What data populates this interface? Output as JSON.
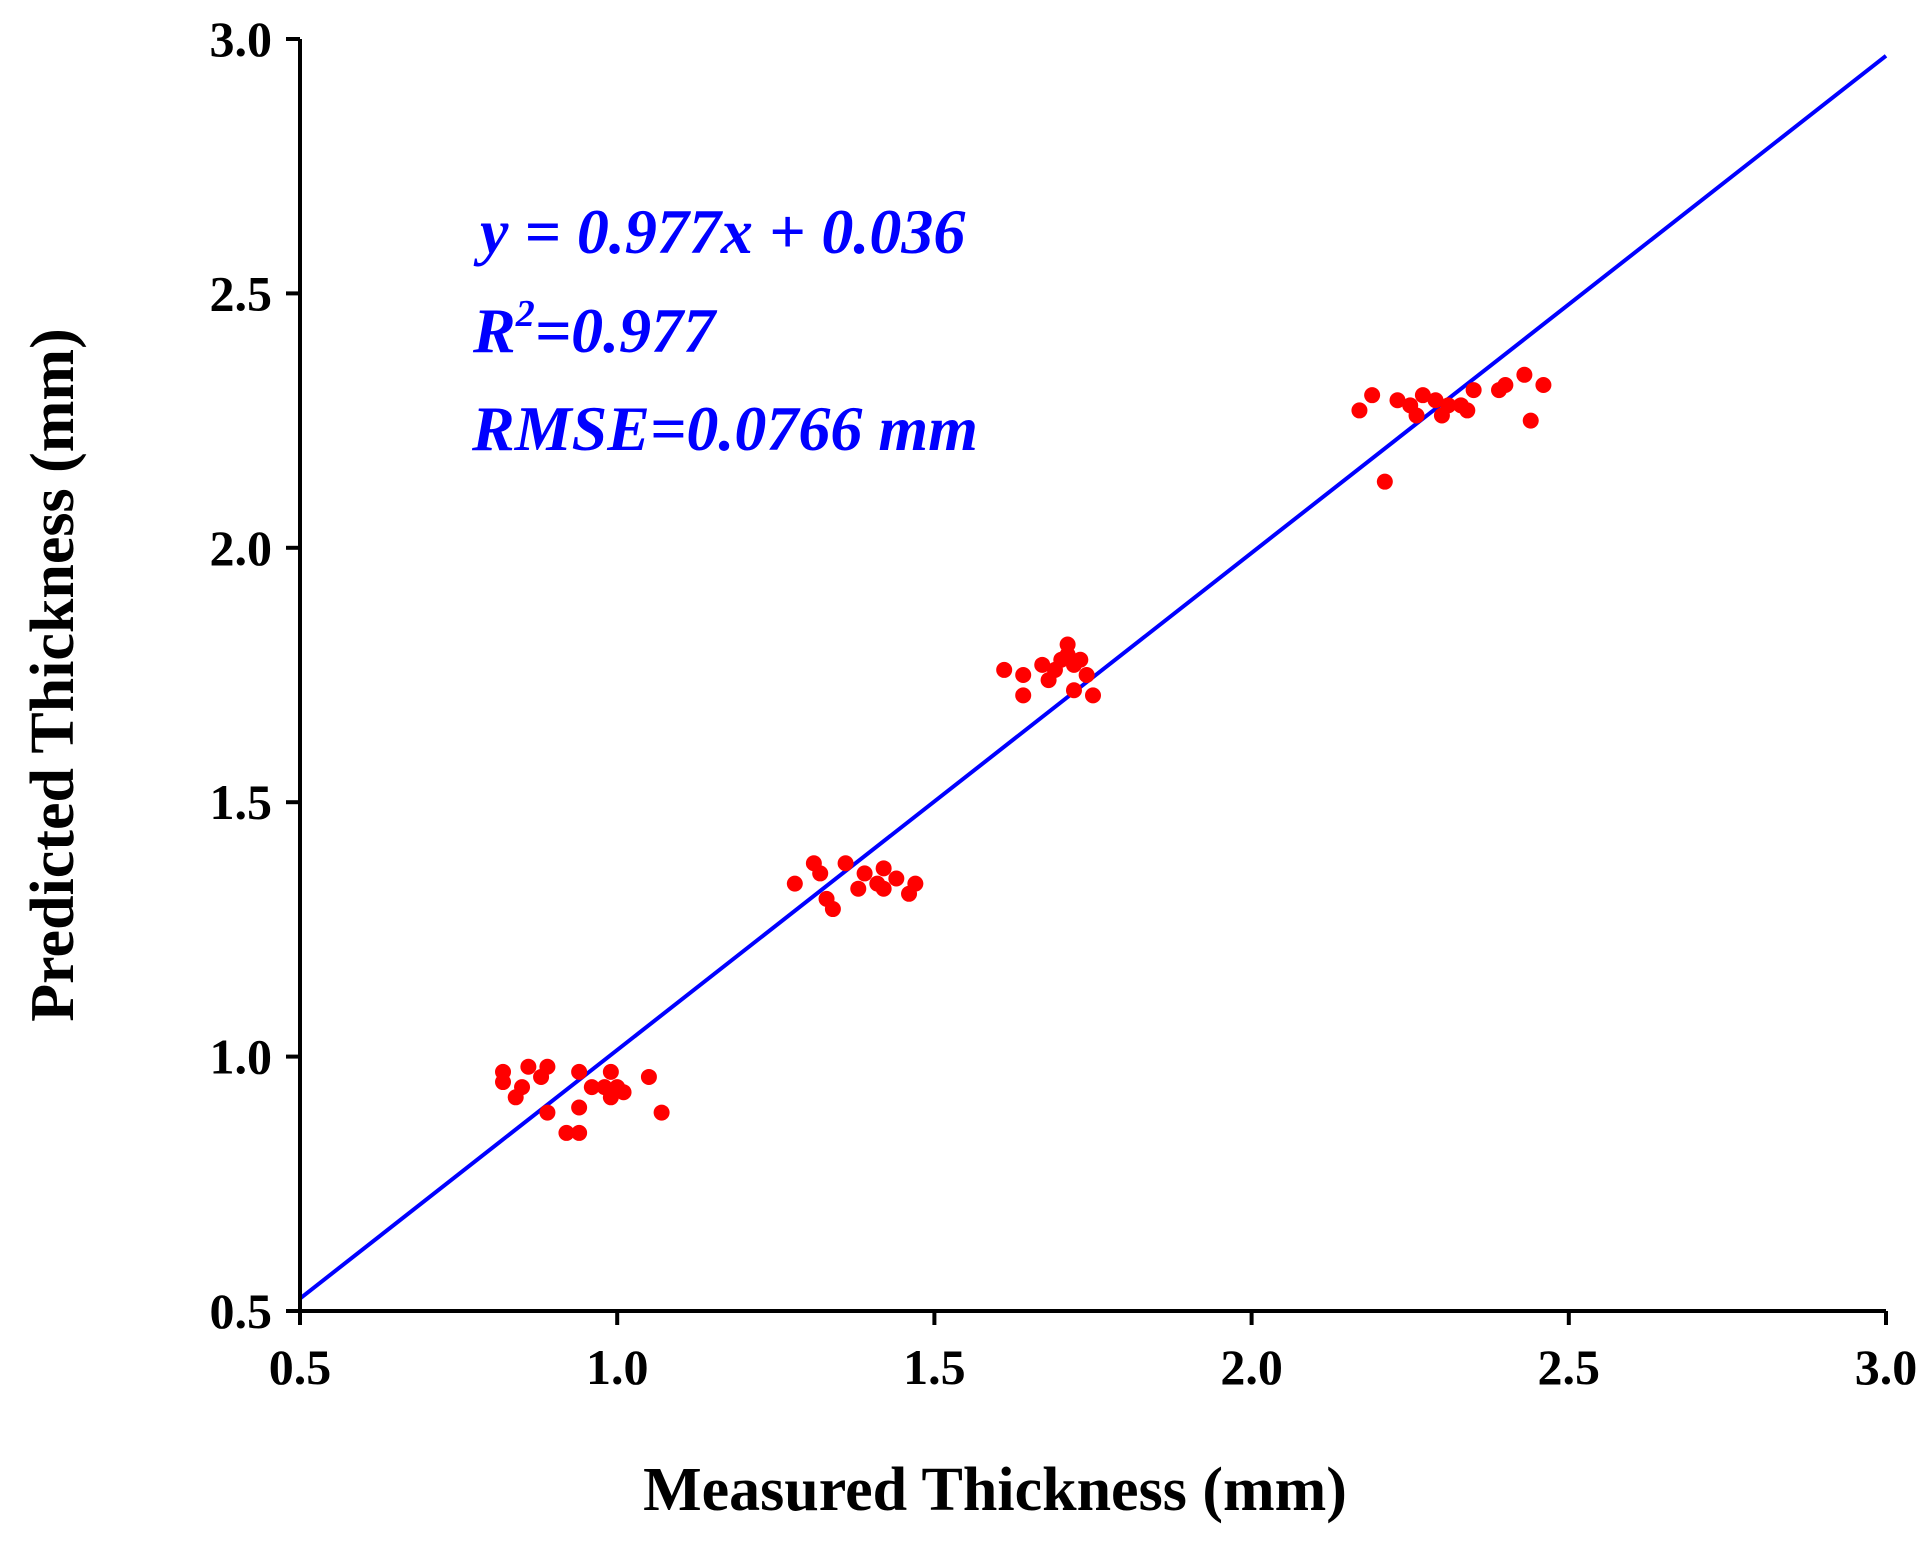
{
  "chart_data": {
    "type": "scatter",
    "xlabel": "Measured Thickness (mm)",
    "ylabel": "Predicted Thickness (mm)",
    "xlim": [
      0.5,
      3.0
    ],
    "ylim": [
      0.5,
      3.0
    ],
    "xticks": [
      "0.5",
      "1.0",
      "1.5",
      "2.0",
      "2.5",
      "3.0"
    ],
    "yticks": [
      "0.5",
      "1.0",
      "1.5",
      "2.0",
      "2.5",
      "3.0"
    ],
    "grid": false,
    "series": [
      {
        "name": "samples",
        "color": "#ff0000",
        "points": [
          [
            0.82,
            0.97
          ],
          [
            0.82,
            0.95
          ],
          [
            0.84,
            0.92
          ],
          [
            0.85,
            0.94
          ],
          [
            0.86,
            0.98
          ],
          [
            0.88,
            0.96
          ],
          [
            0.89,
            0.98
          ],
          [
            0.89,
            0.89
          ],
          [
            0.92,
            0.85
          ],
          [
            0.94,
            0.85
          ],
          [
            0.94,
            0.9
          ],
          [
            0.94,
            0.97
          ],
          [
            0.96,
            0.94
          ],
          [
            0.98,
            0.94
          ],
          [
            0.99,
            0.97
          ],
          [
            0.99,
            0.92
          ],
          [
            1.0,
            0.94
          ],
          [
            1.01,
            0.93
          ],
          [
            1.05,
            0.96
          ],
          [
            1.07,
            0.89
          ],
          [
            1.28,
            1.34
          ],
          [
            1.31,
            1.38
          ],
          [
            1.32,
            1.36
          ],
          [
            1.33,
            1.31
          ],
          [
            1.34,
            1.29
          ],
          [
            1.36,
            1.38
          ],
          [
            1.38,
            1.33
          ],
          [
            1.39,
            1.36
          ],
          [
            1.41,
            1.34
          ],
          [
            1.42,
            1.37
          ],
          [
            1.42,
            1.33
          ],
          [
            1.44,
            1.35
          ],
          [
            1.46,
            1.32
          ],
          [
            1.47,
            1.34
          ],
          [
            1.61,
            1.76
          ],
          [
            1.64,
            1.71
          ],
          [
            1.64,
            1.75
          ],
          [
            1.67,
            1.77
          ],
          [
            1.68,
            1.74
          ],
          [
            1.69,
            1.76
          ],
          [
            1.7,
            1.78
          ],
          [
            1.71,
            1.81
          ],
          [
            1.71,
            1.79
          ],
          [
            1.72,
            1.77
          ],
          [
            1.72,
            1.72
          ],
          [
            1.73,
            1.78
          ],
          [
            1.74,
            1.75
          ],
          [
            1.75,
            1.71
          ],
          [
            2.17,
            2.27
          ],
          [
            2.19,
            2.3
          ],
          [
            2.21,
            2.13
          ],
          [
            2.23,
            2.29
          ],
          [
            2.25,
            2.28
          ],
          [
            2.26,
            2.26
          ],
          [
            2.27,
            2.3
          ],
          [
            2.29,
            2.29
          ],
          [
            2.3,
            2.26
          ],
          [
            2.31,
            2.28
          ],
          [
            2.33,
            2.28
          ],
          [
            2.34,
            2.27
          ],
          [
            2.35,
            2.31
          ],
          [
            2.39,
            2.31
          ],
          [
            2.4,
            2.32
          ],
          [
            2.43,
            2.34
          ],
          [
            2.44,
            2.25
          ],
          [
            2.46,
            2.32
          ]
        ]
      }
    ],
    "fit_line": {
      "slope": 0.977,
      "intercept": 0.036,
      "x_range": [
        0.5,
        3.0
      ],
      "color": "#0000ff"
    },
    "annotations": {
      "equation": "y = 0.977x + 0.036",
      "r2_prefix": "R",
      "r2_sup": "2",
      "r2_value": "=0.977",
      "rmse": "RMSE=0.0766 mm",
      "color": "#0000ff"
    }
  }
}
